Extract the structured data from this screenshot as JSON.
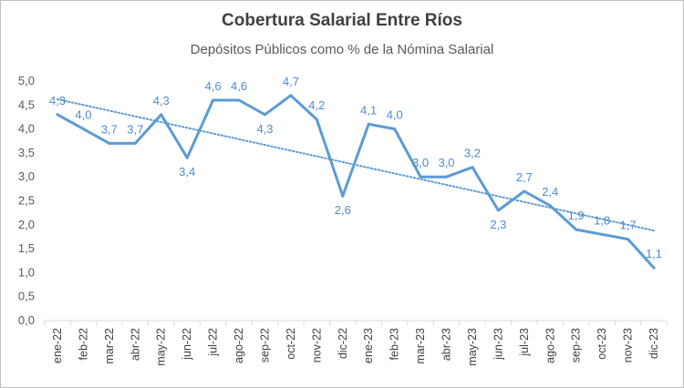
{
  "chart_data": {
    "type": "line",
    "title": "Cobertura Salarial Entre Ríos",
    "subtitle": "Depósitos Públicos como % de la Nómina Salarial",
    "xlabel": "",
    "ylabel": "",
    "ylim": [
      0,
      5
    ],
    "yticks": [
      "0,0",
      "0,5",
      "1,0",
      "1,5",
      "2,0",
      "2,5",
      "3,0",
      "3,5",
      "4,0",
      "4,5",
      "5,0"
    ],
    "categories": [
      "ene-22",
      "feb-22",
      "mar-22",
      "abr-22",
      "may-22",
      "jun-22",
      "jul-22",
      "ago-22",
      "sep-22",
      "oct-22",
      "nov-22",
      "dic-22",
      "ene-23",
      "feb-23",
      "mar-23",
      "abr-23",
      "may-23",
      "jun-23",
      "jul-23",
      "ago-23",
      "sep-23",
      "oct-23",
      "nov-23",
      "dic-23"
    ],
    "values": [
      4.3,
      4.0,
      3.7,
      3.7,
      4.3,
      3.4,
      4.6,
      4.6,
      4.3,
      4.7,
      4.2,
      2.6,
      4.1,
      4.0,
      3.0,
      3.0,
      3.2,
      2.3,
      2.7,
      2.4,
      1.9,
      1.8,
      1.7,
      1.1
    ],
    "data_labels": [
      "4,3",
      "4,0",
      "3,7",
      "3,7",
      "4,3",
      "3,4",
      "4,6",
      "4,6",
      "4,3",
      "4,7",
      "4,2",
      "2,6",
      "4,1",
      "4,0",
      "3,0",
      "3,0",
      "3,2",
      "2,3",
      "2,7",
      "2,4",
      "1,9",
      "1,8",
      "1,7",
      "1,1"
    ],
    "trendline": {
      "type": "linear",
      "style": "dotted",
      "start": 4.62,
      "end": 1.88
    },
    "grid": false,
    "legend": "none",
    "colors": {
      "line": "#5b9bd5",
      "labels": "#4f8bd0",
      "trend": "#5b9bd5"
    }
  }
}
